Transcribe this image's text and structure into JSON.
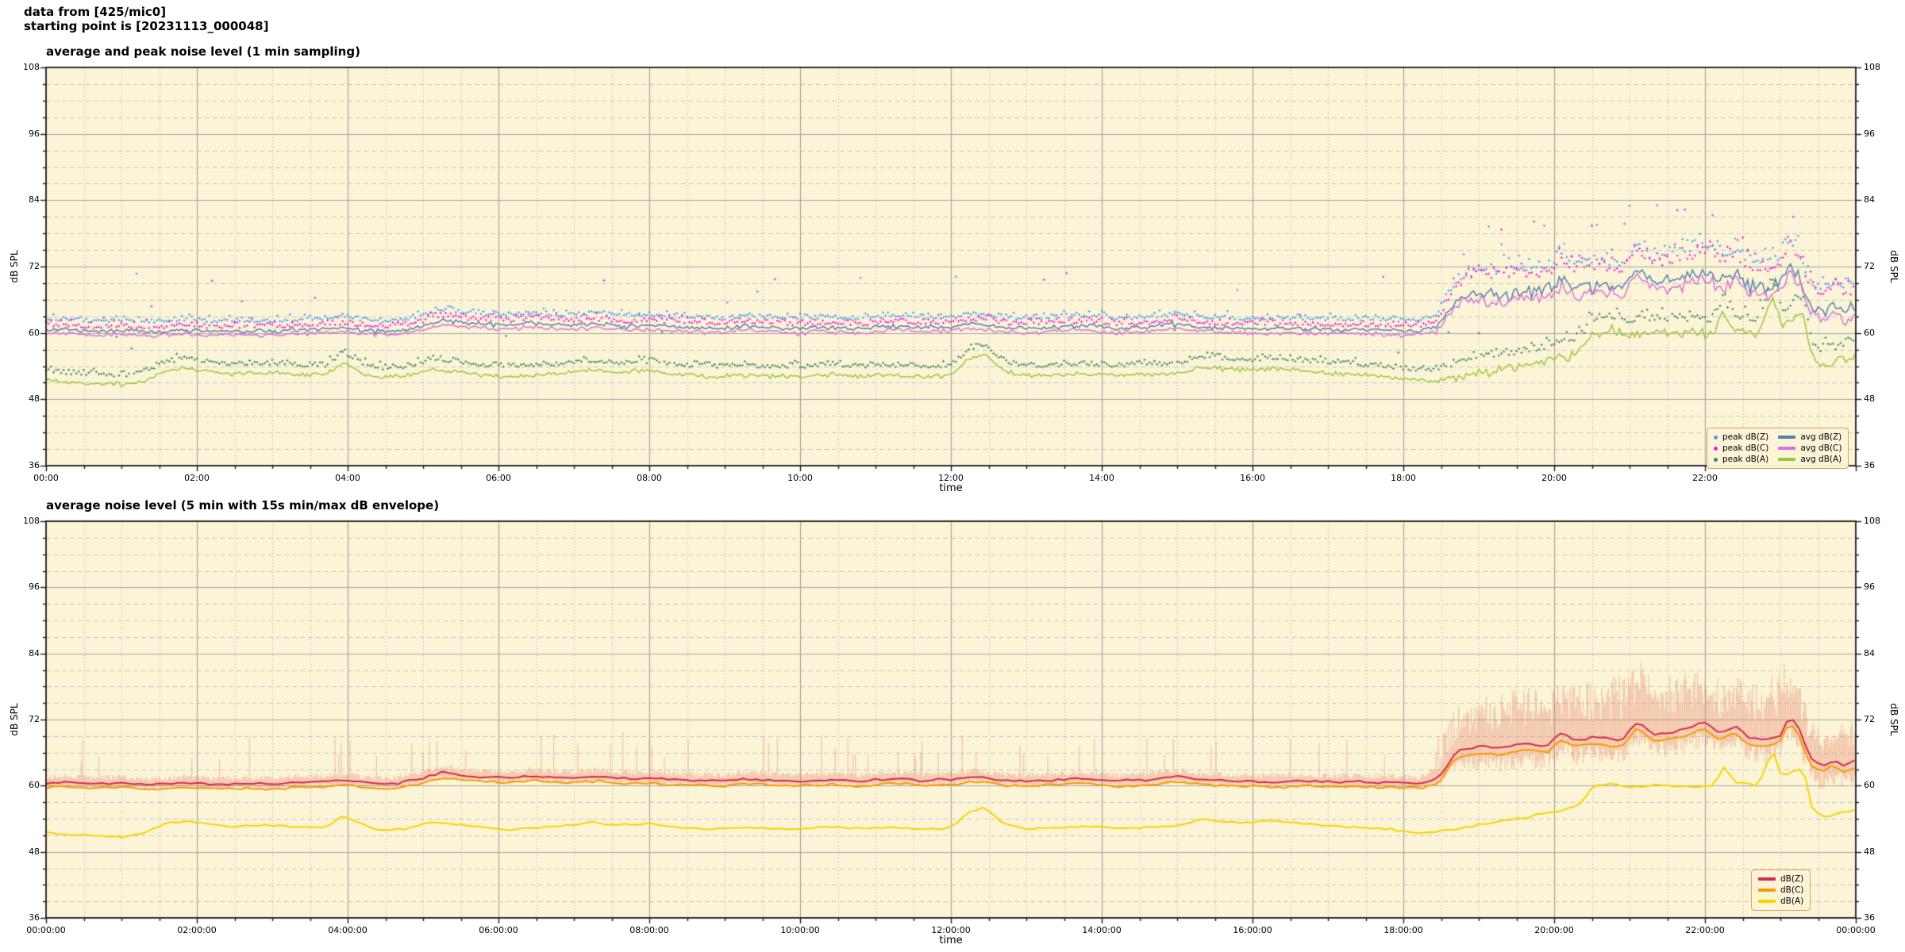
{
  "header": {
    "line1": "data from [425/mic0]",
    "line2": "starting point is [20231113_000048]"
  },
  "colors": {
    "figure_bg": "#ffffff",
    "plot_bg": "#fcf4d6",
    "grid_major": "#a6a6a6",
    "grid_minor": "#c6c6c6",
    "spine": "#1a1a1a",
    "legend_border": "#d7a35f",
    "legend_bg": "#fcf4d6"
  },
  "anchor_sets": {
    "avgZ": [
      [
        0,
        60.4
      ],
      [
        0.3,
        60.7
      ],
      [
        0.6,
        60.3
      ],
      [
        1,
        60.5
      ],
      [
        1.4,
        60.2
      ],
      [
        1.8,
        60.5
      ],
      [
        2.2,
        60.3
      ],
      [
        2.6,
        60.4
      ],
      [
        3,
        60.3
      ],
      [
        3.4,
        60.6
      ],
      [
        3.8,
        60.8
      ],
      [
        4,
        61.0
      ],
      [
        4.2,
        60.5
      ],
      [
        4.6,
        60.3
      ],
      [
        5,
        61.3
      ],
      [
        5.25,
        62.4
      ],
      [
        5.5,
        61.9
      ],
      [
        5.8,
        61.6
      ],
      [
        6.1,
        61.4
      ],
      [
        6.4,
        61.8
      ],
      [
        6.7,
        61.5
      ],
      [
        7,
        61.4
      ],
      [
        7.3,
        61.7
      ],
      [
        7.7,
        61.2
      ],
      [
        8,
        61.4
      ],
      [
        8.3,
        61.1
      ],
      [
        8.7,
        60.9
      ],
      [
        9,
        60.8
      ],
      [
        9.3,
        61.3
      ],
      [
        9.7,
        60.9
      ],
      [
        10,
        60.8
      ],
      [
        10.4,
        61.0
      ],
      [
        10.8,
        60.7
      ],
      [
        11.2,
        61.3
      ],
      [
        11.6,
        61.0
      ],
      [
        12,
        61.1
      ],
      [
        12.3,
        61.7
      ],
      [
        12.7,
        60.9
      ],
      [
        13,
        60.8
      ],
      [
        13.4,
        61.1
      ],
      [
        13.8,
        61.3
      ],
      [
        14.2,
        60.8
      ],
      [
        14.6,
        61.0
      ],
      [
        15,
        61.6
      ],
      [
        15.4,
        61.0
      ],
      [
        15.8,
        60.8
      ],
      [
        16.2,
        60.7
      ],
      [
        16.6,
        60.8
      ],
      [
        17,
        60.6
      ],
      [
        17.4,
        60.7
      ],
      [
        17.8,
        60.5
      ],
      [
        18.2,
        60.4
      ],
      [
        18.45,
        61.2
      ],
      [
        18.7,
        66.2
      ],
      [
        19,
        67.2
      ],
      [
        19.3,
        66.8
      ],
      [
        19.6,
        67.6
      ],
      [
        19.9,
        67.3
      ],
      [
        20.1,
        69.7
      ],
      [
        20.3,
        68.2
      ],
      [
        20.6,
        68.8
      ],
      [
        20.9,
        68.3
      ],
      [
        21.1,
        71.8
      ],
      [
        21.3,
        69.2
      ],
      [
        21.6,
        69.8
      ],
      [
        21.8,
        70.6
      ],
      [
        22,
        71.4
      ],
      [
        22.2,
        69.4
      ],
      [
        22.4,
        70.9
      ],
      [
        22.6,
        68.5
      ],
      [
        22.8,
        68.3
      ],
      [
        23,
        69.2
      ],
      [
        23.12,
        72.8
      ],
      [
        23.25,
        70.3
      ],
      [
        23.4,
        64.8
      ],
      [
        23.55,
        63.6
      ],
      [
        23.7,
        64.7
      ],
      [
        23.85,
        63.7
      ],
      [
        24,
        64.5
      ]
    ],
    "avgA": [
      [
        0,
        51.6
      ],
      [
        0.3,
        51.1
      ],
      [
        0.7,
        50.9
      ],
      [
        1,
        50.6
      ],
      [
        1.3,
        51.3
      ],
      [
        1.6,
        53.2
      ],
      [
        1.9,
        53.6
      ],
      [
        2.2,
        53.0
      ],
      [
        2.5,
        52.6
      ],
      [
        2.9,
        52.8
      ],
      [
        3.3,
        52.5
      ],
      [
        3.7,
        52.4
      ],
      [
        3.95,
        54.6
      ],
      [
        4.15,
        53.1
      ],
      [
        4.4,
        51.9
      ],
      [
        4.8,
        52.2
      ],
      [
        5.1,
        53.4
      ],
      [
        5.45,
        53.1
      ],
      [
        5.8,
        52.4
      ],
      [
        6.1,
        52.0
      ],
      [
        6.45,
        52.4
      ],
      [
        6.8,
        52.6
      ],
      [
        7.2,
        53.3
      ],
      [
        7.6,
        52.9
      ],
      [
        8,
        53.1
      ],
      [
        8.4,
        52.4
      ],
      [
        8.8,
        52.1
      ],
      [
        9.2,
        52.4
      ],
      [
        9.6,
        52.2
      ],
      [
        10,
        52.1
      ],
      [
        10.4,
        52.6
      ],
      [
        10.8,
        52.2
      ],
      [
        11.2,
        52.4
      ],
      [
        11.6,
        52.1
      ],
      [
        12,
        52.4
      ],
      [
        12.25,
        55.3
      ],
      [
        12.45,
        56.1
      ],
      [
        12.7,
        53.1
      ],
      [
        13,
        52.2
      ],
      [
        13.4,
        52.4
      ],
      [
        13.8,
        52.6
      ],
      [
        14.2,
        52.3
      ],
      [
        14.6,
        52.5
      ],
      [
        15,
        52.6
      ],
      [
        15.3,
        53.9
      ],
      [
        15.7,
        53.4
      ],
      [
        16,
        53.3
      ],
      [
        16.3,
        53.7
      ],
      [
        16.7,
        53.1
      ],
      [
        17,
        52.8
      ],
      [
        17.4,
        52.4
      ],
      [
        17.8,
        52.1
      ],
      [
        18.1,
        51.6
      ],
      [
        18.4,
        51.4
      ],
      [
        18.8,
        52.4
      ],
      [
        19.2,
        53.4
      ],
      [
        19.6,
        54.2
      ],
      [
        20,
        55.2
      ],
      [
        20.2,
        55.7
      ],
      [
        20.35,
        56.8
      ],
      [
        20.5,
        59.6
      ],
      [
        20.7,
        60.4
      ],
      [
        21,
        59.7
      ],
      [
        21.3,
        60.1
      ],
      [
        21.6,
        59.9
      ],
      [
        21.9,
        60.0
      ],
      [
        22.1,
        59.8
      ],
      [
        22.25,
        63.4
      ],
      [
        22.4,
        60.6
      ],
      [
        22.7,
        59.9
      ],
      [
        22.9,
        66.8
      ],
      [
        23.02,
        61.5
      ],
      [
        23.15,
        62.5
      ],
      [
        23.3,
        63.5
      ],
      [
        23.42,
        56.0
      ],
      [
        23.55,
        54.2
      ],
      [
        23.7,
        54.5
      ],
      [
        23.85,
        55.3
      ],
      [
        24,
        55.5
      ]
    ]
  },
  "chart_data": [
    {
      "type": "line+scatter",
      "title": "average and peak noise level (1 min sampling)",
      "xlabel": "time",
      "ylabel_left": "dB SPL",
      "ylabel_right": "dB SPL",
      "ylim": [
        36,
        108
      ],
      "xlim_hours": [
        0,
        24
      ],
      "y_ticks": [
        108,
        96,
        84,
        72,
        60,
        48,
        36
      ],
      "y_minor_step": 3,
      "x_tick_hours": [
        0,
        2,
        4,
        6,
        8,
        10,
        12,
        14,
        16,
        18,
        20,
        22
      ],
      "x_tick_labels": [
        "00:00",
        "02:00",
        "04:00",
        "06:00",
        "08:00",
        "10:00",
        "12:00",
        "14:00",
        "16:00",
        "18:00",
        "20:00",
        "22:00"
      ],
      "x_minor_step_hours": 0.5,
      "grid": true,
      "legend_position": "lower right",
      "legend_columns": [
        [
          "peak dB(Z)",
          "peak dB(C)",
          "peak dB(A)"
        ],
        [
          "avg dB(Z)",
          "avg dB(C)",
          "avg dB(A)"
        ]
      ],
      "series": [
        {
          "label": "peak dB(Z)",
          "type": "scatter",
          "color": "#41a0f0",
          "anchors_ref": "avgZ",
          "offset": [
            [
              0,
              1.9
            ],
            [
              18.3,
              1.9
            ],
            [
              19,
              4.6
            ],
            [
              24,
              4.6
            ]
          ],
          "spread": [
            [
              0,
              1.1
            ],
            [
              18.3,
              1.1
            ],
            [
              19,
              3.0
            ],
            [
              24,
              3.0
            ]
          ],
          "outlier_prob": [
            [
              0,
              0.012
            ],
            [
              18.3,
              0.012
            ],
            [
              19,
              0.05
            ],
            [
              24,
              0.05
            ]
          ],
          "outlier_add": 8,
          "step_min": 2,
          "seed": 101
        },
        {
          "label": "peak dB(C)",
          "type": "scatter",
          "color": "#ef1ddf",
          "anchors_ref": "avgZ",
          "offset": [
            [
              0,
              0.9
            ],
            [
              18.3,
              0.9
            ],
            [
              19,
              3.6
            ],
            [
              24,
              3.6
            ]
          ],
          "spread": [
            [
              0,
              1.3
            ],
            [
              18.3,
              1.3
            ],
            [
              19,
              3.2
            ],
            [
              24,
              3.2
            ]
          ],
          "outlier_prob": [
            [
              0,
              0.012
            ],
            [
              18.3,
              0.012
            ],
            [
              19,
              0.05
            ],
            [
              24,
              0.05
            ]
          ],
          "outlier_add": 9,
          "step_min": 2,
          "seed": 102
        },
        {
          "label": "peak dB(A)",
          "type": "scatter",
          "color": "#37875a",
          "anchors_ref": "avgA",
          "offset": [
            [
              0,
              1.7
            ],
            [
              18.3,
              1.9
            ],
            [
              19,
              2.8
            ],
            [
              24,
              2.8
            ]
          ],
          "spread": [
            [
              0,
              1.1
            ],
            [
              18.3,
              1.1
            ],
            [
              19,
              2.2
            ],
            [
              24,
              2.2
            ]
          ],
          "outlier_prob": [
            [
              0,
              0.008
            ],
            [
              18.3,
              0.008
            ],
            [
              19,
              0.03
            ],
            [
              24,
              0.03
            ]
          ],
          "outlier_add": 7,
          "step_min": 2,
          "seed": 103
        },
        {
          "label": "avg dB(Z)",
          "type": "line",
          "color": "#5580ab",
          "lw": 1.5,
          "anchors_ref": "avgZ",
          "jitter": [
            [
              0,
              0.35
            ],
            [
              18.3,
              0.45
            ],
            [
              19,
              1.25
            ],
            [
              24,
              1.25
            ]
          ],
          "step_min": 2,
          "seed": 104
        },
        {
          "label": "avg dB(C)",
          "type": "line",
          "color": "#d873da",
          "lw": 1.5,
          "anchors_ref": "avgZ",
          "offset": [
            [
              0,
              -0.7
            ],
            [
              18.3,
              -0.8
            ],
            [
              19,
              -1.3
            ],
            [
              24,
              -1.3
            ]
          ],
          "jitter": [
            [
              0,
              0.35
            ],
            [
              18.3,
              0.45
            ],
            [
              19,
              1.25
            ],
            [
              24,
              1.25
            ]
          ],
          "step_min": 2,
          "seed": 105
        },
        {
          "label": "avg dB(A)",
          "type": "line",
          "color": "#9cc83c",
          "lw": 1.5,
          "anchors_ref": "avgA",
          "jitter": [
            [
              0,
              0.4
            ],
            [
              18.3,
              0.4
            ],
            [
              19,
              0.95
            ],
            [
              24,
              0.95
            ]
          ],
          "step_min": 2,
          "seed": 106
        }
      ]
    },
    {
      "type": "line+envelope",
      "title": "average noise level (5 min with 15s min/max dB envelope)",
      "xlabel": "time",
      "ylabel_left": "dB SPL",
      "ylabel_right": "dB SPL",
      "ylim": [
        36,
        108
      ],
      "xlim_hours": [
        0,
        24
      ],
      "y_ticks": [
        108,
        96,
        84,
        72,
        60,
        48,
        36
      ],
      "y_minor_step": 3,
      "x_tick_hours": [
        0,
        2,
        4,
        6,
        8,
        10,
        12,
        14,
        16,
        18,
        20,
        22,
        24
      ],
      "x_tick_labels": [
        "00:00:00",
        "02:00:00",
        "04:00:00",
        "06:00:00",
        "08:00:00",
        "10:00:00",
        "12:00:00",
        "14:00:00",
        "16:00:00",
        "18:00:00",
        "20:00:00",
        "22:00:00",
        "00:00:00"
      ],
      "x_minor_step_hours": 0.5,
      "grid": true,
      "legend_position": "lower right",
      "legend_columns": [
        [
          "dB(Z)",
          "dB(C)",
          "dB(A)"
        ]
      ],
      "series": [
        {
          "label": "min/max dB envelope",
          "type": "envelope",
          "color": "rgba(228,118,98,0.38)",
          "anchors_ref": "avgZ",
          "min_off": [
            [
              0,
              1.3
            ],
            [
              18.3,
              1.6
            ],
            [
              19,
              5.5
            ],
            [
              24,
              5.5
            ]
          ],
          "max_off": [
            [
              0,
              2.2
            ],
            [
              18.3,
              2.4
            ],
            [
              18.7,
              6.5
            ],
            [
              19,
              9
            ],
            [
              19.5,
              10.5
            ],
            [
              20,
              10
            ],
            [
              20.5,
              11
            ],
            [
              21,
              12
            ],
            [
              21.5,
              11
            ],
            [
              22,
              10.5
            ],
            [
              22.5,
              11
            ],
            [
              23,
              12
            ],
            [
              23.2,
              10
            ],
            [
              23.45,
              7
            ],
            [
              24,
              7.5
            ]
          ],
          "spike_prob": [
            [
              0,
              0.05
            ],
            [
              18.3,
              0.07
            ],
            [
              18.8,
              0.5
            ],
            [
              24,
              0.5
            ]
          ],
          "spike_add": [
            [
              0,
              6.5
            ],
            [
              18.3,
              6.5
            ],
            [
              18.9,
              0
            ],
            [
              24,
              0
            ]
          ],
          "step_min": 1,
          "seed": 201
        },
        {
          "label": "dB(A)",
          "type": "line",
          "color": "#f6d500",
          "lw": 2,
          "anchors_ref": "avgA",
          "jitter": [
            [
              0,
              0.15
            ],
            [
              24,
              0.25
            ]
          ],
          "step_min": 5,
          "seed": 202
        },
        {
          "label": "dB(C)",
          "type": "line",
          "color": "#f69b00",
          "lw": 2,
          "anchors_ref": "avgZ",
          "offset": [
            [
              0,
              -0.85
            ],
            [
              18.3,
              -0.9
            ],
            [
              19,
              -1.2
            ],
            [
              24,
              -1.2
            ]
          ],
          "jitter": [
            [
              0,
              0.18
            ],
            [
              24,
              0.3
            ]
          ],
          "step_min": 5,
          "seed": 203
        },
        {
          "label": "dB(Z)",
          "type": "line",
          "color": "#d62a50",
          "lw": 2,
          "anchors_ref": "avgZ",
          "jitter": [
            [
              0,
              0.18
            ],
            [
              24,
              0.3
            ]
          ],
          "step_min": 5,
          "seed": 204
        }
      ]
    }
  ]
}
